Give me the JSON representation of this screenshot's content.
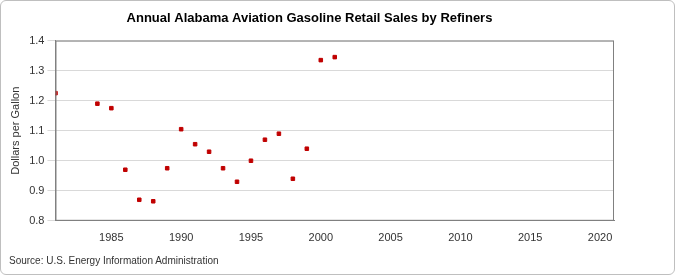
{
  "chart_data": {
    "type": "scatter",
    "title": "Annual Alabama Aviation Gasoline Retail Sales by Refiners",
    "y_label": "Dollars per Gallon",
    "source": "Source: U.S. Energy Information Administration",
    "x": [
      1981,
      1984,
      1985,
      1986,
      1987,
      1988,
      1989,
      1990,
      1991,
      1992,
      1993,
      1994,
      1995,
      1996,
      1997,
      1998,
      1999,
      2000,
      2001
    ],
    "values": [
      1.225,
      1.19,
      1.175,
      0.97,
      0.87,
      0.865,
      0.975,
      1.105,
      1.055,
      1.03,
      0.975,
      0.93,
      1.0,
      1.07,
      1.09,
      0.94,
      1.04,
      1.335,
      1.345
    ],
    "color": "#c00000",
    "marker": "square",
    "xlim": [
      1981,
      2021
    ],
    "xticks": [
      1985,
      1990,
      1995,
      2000,
      2005,
      2010,
      2015,
      2020
    ],
    "ylim": [
      0.8,
      1.4
    ],
    "yticks": [
      0.8,
      0.9,
      {
        "value": 1,
        "label": "1.0"
      },
      1.1,
      1.2,
      1.3,
      1.4
    ],
    "grid": true
  }
}
